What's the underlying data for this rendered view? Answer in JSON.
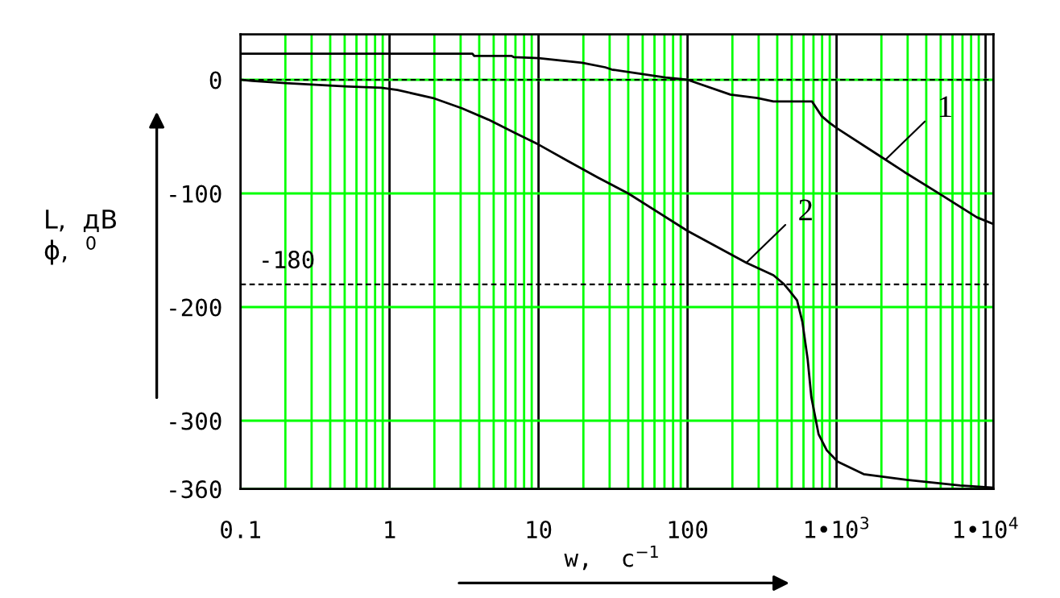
{
  "chart_data": {
    "type": "line",
    "xlabel": "w,  с$^{−1}$",
    "ylabel": "L,  дВ\nϕ,  $^{0}$",
    "log": "x",
    "xlim": [
      0.1,
      11300
    ],
    "ylim": [
      -360,
      40
    ],
    "xticks": [
      0.1,
      {
        "value": 0.2,
        "label": null
      },
      {
        "value": 0.3,
        "label": null
      },
      {
        "value": 0.4,
        "label": null
      },
      {
        "value": 0.5,
        "label": null
      },
      {
        "value": 0.6,
        "label": null
      },
      {
        "value": 0.7,
        "label": null
      },
      {
        "value": 0.8,
        "label": null
      },
      {
        "value": 0.9,
        "label": null
      },
      1,
      {
        "value": 2,
        "label": null
      },
      {
        "value": 3,
        "label": null
      },
      {
        "value": 4,
        "label": null
      },
      {
        "value": 5,
        "label": null
      },
      {
        "value": 6,
        "label": null
      },
      {
        "value": 7,
        "label": null
      },
      {
        "value": 8,
        "label": null
      },
      {
        "value": 9,
        "label": null
      },
      10,
      {
        "value": 20,
        "label": null
      },
      {
        "value": 30,
        "label": null
      },
      {
        "value": 40,
        "label": null
      },
      {
        "value": 50,
        "label": null
      },
      {
        "value": 60,
        "label": null
      },
      {
        "value": 70,
        "label": null
      },
      {
        "value": 80,
        "label": null
      },
      {
        "value": 90,
        "label": null
      },
      100,
      {
        "value": 200,
        "label": null
      },
      {
        "value": 300,
        "label": null
      },
      {
        "value": 400,
        "label": null
      },
      {
        "value": 500,
        "label": null
      },
      {
        "value": 600,
        "label": null
      },
      {
        "value": 700,
        "label": null
      },
      {
        "value": 800,
        "label": null
      },
      {
        "value": 900,
        "label": null
      },
      {
        "value": 1000,
        "label": "1•10$^{3}$"
      },
      {
        "value": 2000,
        "label": null
      },
      {
        "value": 3000,
        "label": null
      },
      {
        "value": 4000,
        "label": null
      },
      {
        "value": 5000,
        "label": null
      },
      {
        "value": 6000,
        "label": null
      },
      {
        "value": 7000,
        "label": null
      },
      {
        "value": 8000,
        "label": null
      },
      {
        "value": 9000,
        "label": null
      },
      {
        "value": 10000,
        "label": "1•10$^{4}$"
      }
    ],
    "yticks": [
      -360,
      -300,
      -200,
      -100,
      0
    ],
    "grid": true,
    "ref_lines": [
      {
        "axis": "y",
        "value": 0,
        "color": "#000000",
        "line_style": "dashed"
      },
      {
        "axis": "y",
        "value": -180,
        "label": "-180",
        "color": "#000000",
        "line_style": "dashed"
      }
    ],
    "series": [
      {
        "color": "#000000",
        "x": [
          0.1,
          3.6,
          3.7,
          6.6,
          6.8,
          10,
          19.6,
          28,
          31,
          71,
          100,
          194,
          294,
          377,
          684,
          795,
          900,
          1016,
          1950,
          2840,
          5000,
          8740,
          11300
        ],
        "values": [
          23,
          23,
          21,
          21,
          20,
          19,
          15,
          11,
          9,
          2,
          0,
          -13,
          -16,
          -19,
          -19,
          -32,
          -38,
          -43,
          -67,
          -81,
          -101,
          -121,
          -127
        ]
      },
      {
        "color": "#000000",
        "x": [
          0.1,
          0.12,
          0.2,
          0.53,
          0.88,
          1.13,
          1.95,
          3.05,
          4.6,
          7,
          10,
          16,
          25,
          40,
          100,
          248,
          377,
          445,
          479,
          543,
          590,
          640,
          677,
          758,
          859,
          1016,
          1520,
          2950,
          6750,
          11300
        ],
        "values": [
          0,
          -1,
          -3,
          -6,
          -7,
          -9,
          -16,
          -25,
          -35,
          -47,
          -57,
          -72,
          -86,
          -100,
          -133,
          -161,
          -172,
          -180,
          -185,
          -194,
          -213,
          -246,
          -279,
          -312,
          -326,
          -336,
          -347,
          -352,
          -357,
          -359
        ]
      }
    ],
    "annotations": [
      {
        "text": "1",
        "x": 2140,
        "y": -70
      },
      {
        "text": "2",
        "x": 248,
        "y": -161
      }
    ]
  }
}
